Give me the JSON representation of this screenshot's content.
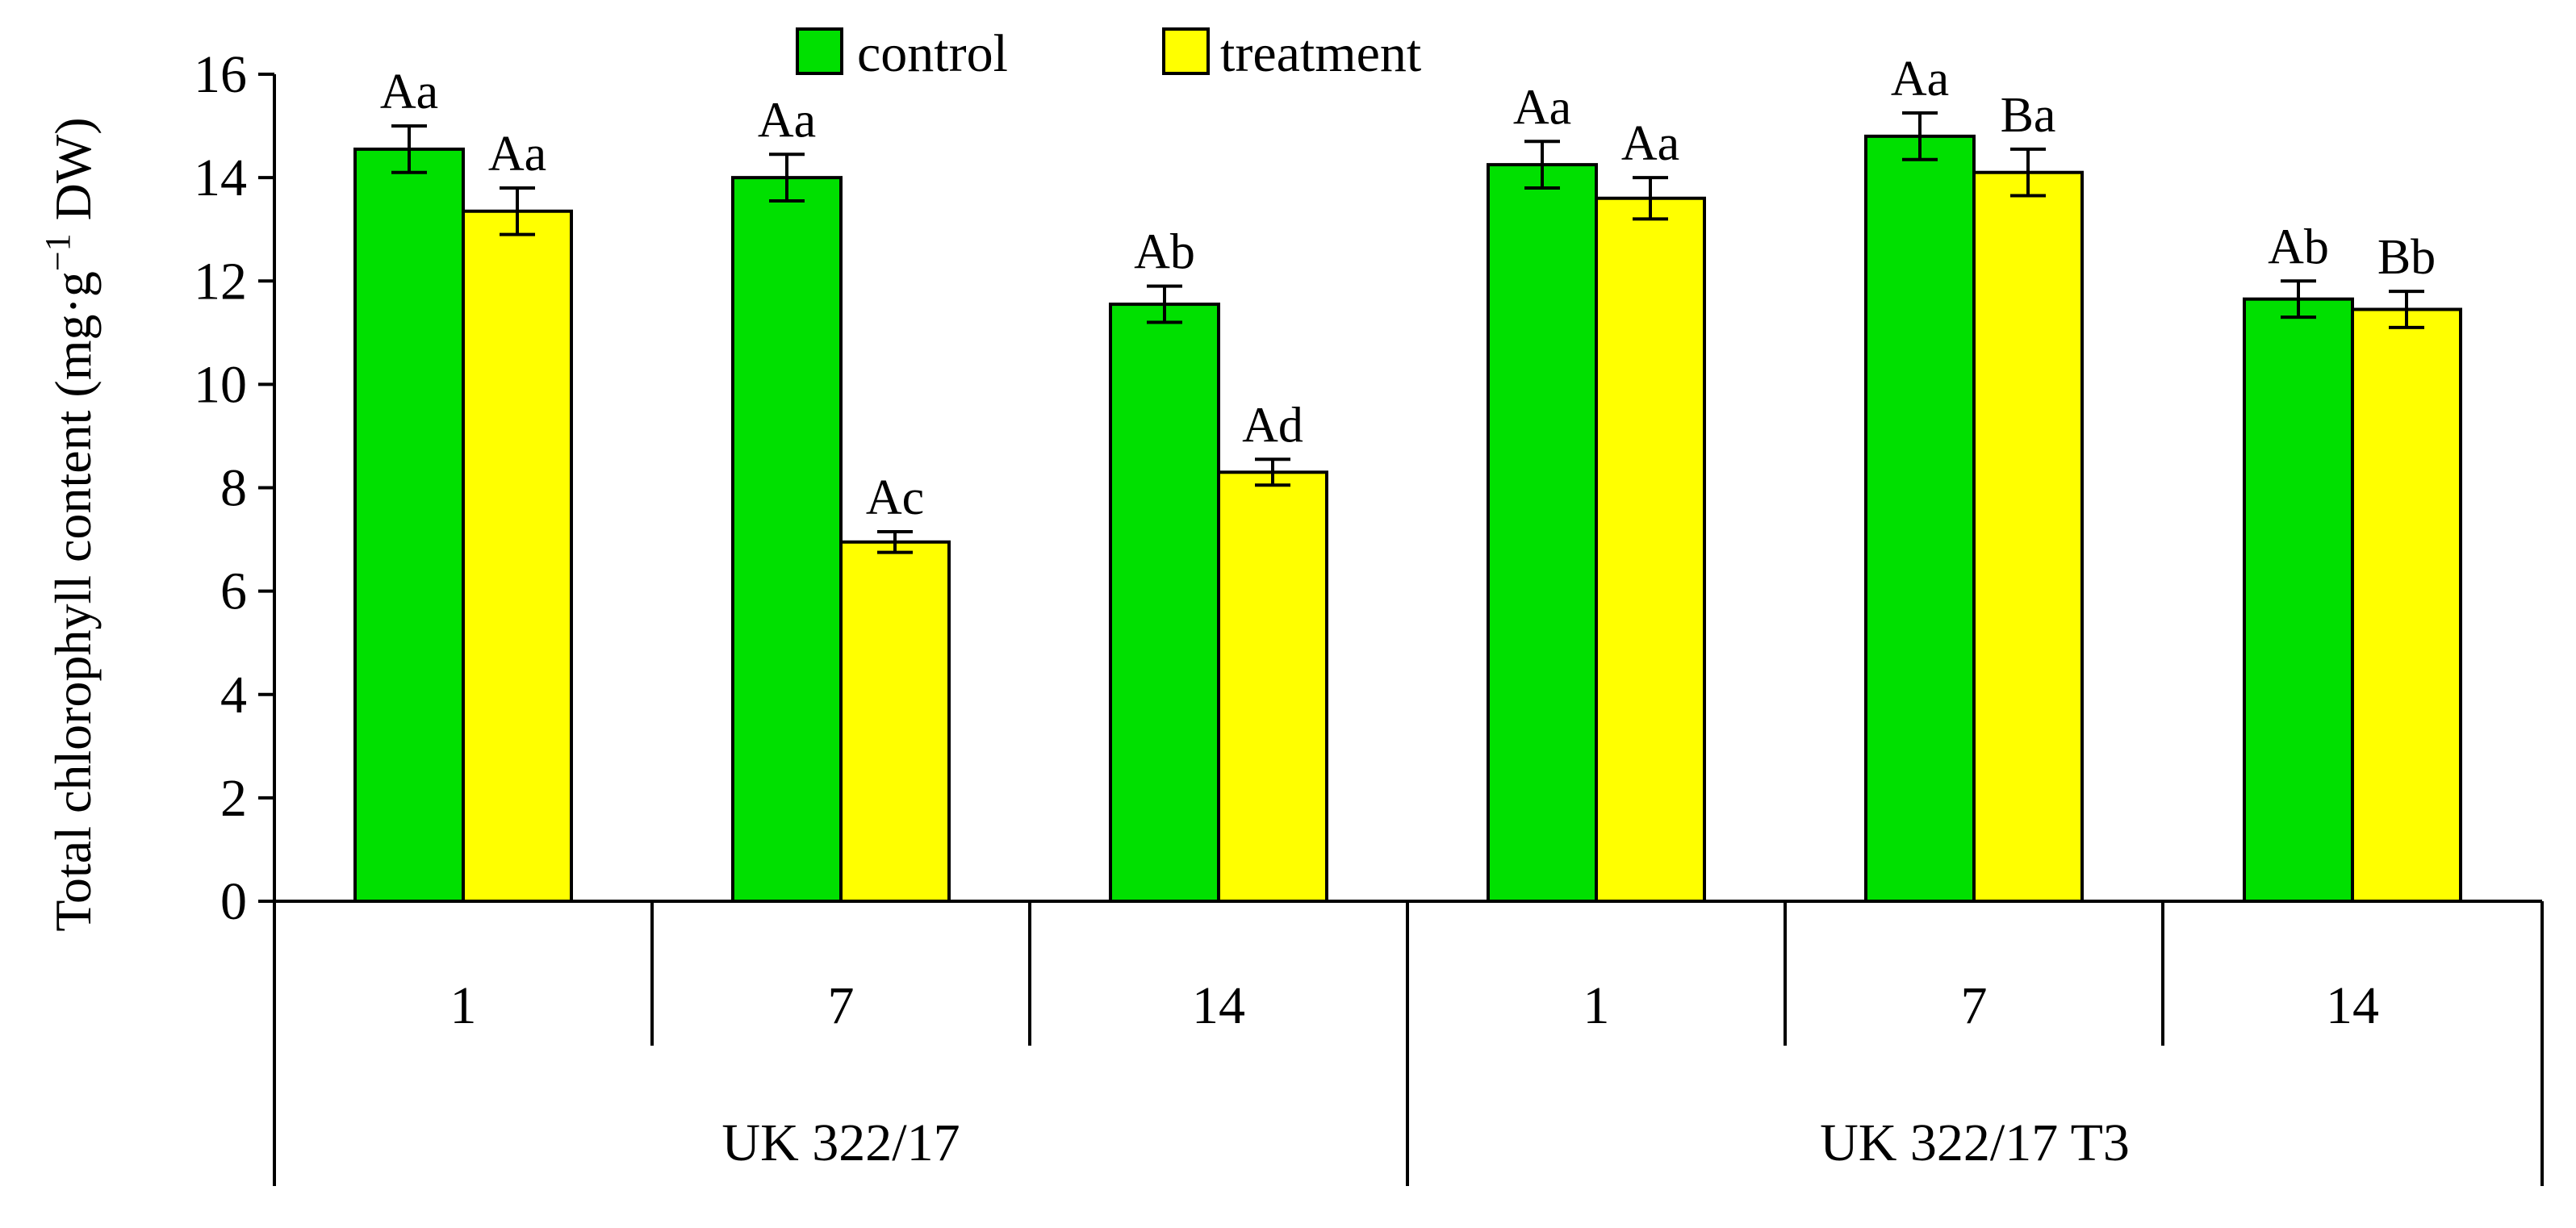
{
  "chart_data": {
    "type": "bar",
    "title": "",
    "ylabel": "Total chlorophyll content (mg·g",
    "ylabel_superscript": "−1",
    "ylabel_suffix": " DW)",
    "ylim": [
      0,
      16
    ],
    "yticks": [
      0,
      2,
      4,
      6,
      8,
      10,
      12,
      14,
      16
    ],
    "legend_position": "top-center",
    "categories": [
      "1",
      "7",
      "14",
      "1",
      "7",
      "14"
    ],
    "groups": [
      {
        "label": "UK 322/17",
        "categories": [
          "1",
          "7",
          "14"
        ]
      },
      {
        "label": "UK 322/17 T3",
        "categories": [
          "1",
          "7",
          "14"
        ]
      }
    ],
    "series": [
      {
        "name": "control",
        "color": "#00e000",
        "values": [
          14.55,
          14.0,
          11.55,
          14.25,
          14.8,
          11.65
        ],
        "errors": [
          0.45,
          0.45,
          0.35,
          0.45,
          0.45,
          0.35
        ],
        "labels": [
          "Aa",
          "Aa",
          "Ab",
          "Aa",
          "Aa",
          "Ab"
        ]
      },
      {
        "name": "treatment",
        "color": "#ffff00",
        "values": [
          13.35,
          6.95,
          8.3,
          13.6,
          14.1,
          11.45
        ],
        "errors": [
          0.45,
          0.2,
          0.25,
          0.4,
          0.45,
          0.35
        ],
        "labels": [
          "Aa",
          "Ac",
          "Ad",
          "Aa",
          "Ba",
          "Bb"
        ]
      }
    ]
  }
}
